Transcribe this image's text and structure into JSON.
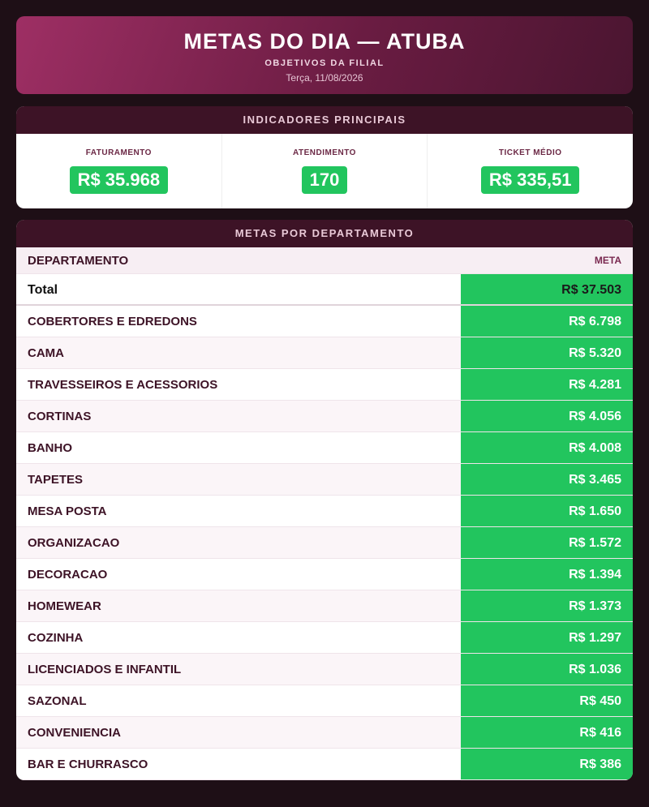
{
  "header": {
    "title": "METAS DO DIA — ATUBA",
    "subtitle": "OBJETIVOS DA FILIAL",
    "date": "Terça, 11/08/2026"
  },
  "indicators": {
    "title": "INDICADORES PRINCIPAIS",
    "items": [
      {
        "label": "FATURAMENTO",
        "value": "R$ 35.968"
      },
      {
        "label": "ATENDIMENTO",
        "value": "170"
      },
      {
        "label": "TICKET MÉDIO",
        "value": "R$ 335,51"
      }
    ]
  },
  "table": {
    "title": "METAS POR DEPARTAMENTO",
    "columns": [
      "DEPARTAMENTO",
      "META"
    ],
    "total": [
      "Total",
      "R$ 37.503"
    ],
    "rows": [
      [
        "COBERTORES E EDREDONS",
        "R$ 6.798"
      ],
      [
        "CAMA",
        "R$ 5.320"
      ],
      [
        "TRAVESSEIROS E ACESSORIOS",
        "R$ 4.281"
      ],
      [
        "CORTINAS",
        "R$ 4.056"
      ],
      [
        "BANHO",
        "R$ 4.008"
      ],
      [
        "TAPETES",
        "R$ 3.465"
      ],
      [
        "MESA POSTA",
        "R$ 1.650"
      ],
      [
        "ORGANIZACAO",
        "R$ 1.572"
      ],
      [
        "DECORACAO",
        "R$ 1.394"
      ],
      [
        "HOMEWEAR",
        "R$ 1.373"
      ],
      [
        "COZINHA",
        "R$ 1.297"
      ],
      [
        "LICENCIADOS E INFANTIL",
        "R$ 1.036"
      ],
      [
        "SAZONAL",
        "R$ 450"
      ],
      [
        "CONVENIENCIA",
        "R$ 416"
      ],
      [
        "BAR E CHURRASCO",
        "R$ 386"
      ]
    ]
  }
}
